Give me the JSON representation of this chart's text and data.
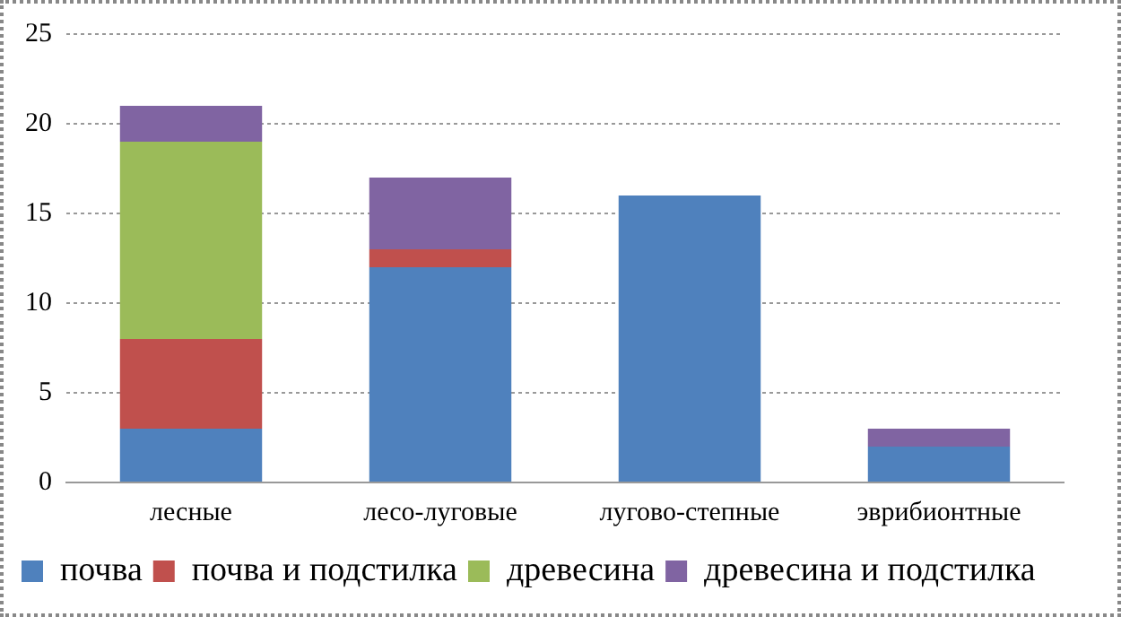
{
  "chart_data": {
    "type": "bar",
    "stacked": true,
    "categories": [
      "лесные",
      "лесо-луговые",
      "лугово-степные",
      "эврибионтные"
    ],
    "series": [
      {
        "name": "почва",
        "color": "#4f81bd",
        "values": [
          3,
          12,
          16,
          2
        ]
      },
      {
        "name": "почва и подстилка",
        "color": "#c0504d",
        "values": [
          5,
          1,
          0,
          0
        ]
      },
      {
        "name": "древесина",
        "color": "#9bbb59",
        "values": [
          11,
          0,
          0,
          0
        ]
      },
      {
        "name": "древесина и подстилка",
        "color": "#8064a2",
        "values": [
          2,
          4,
          0,
          1
        ]
      }
    ],
    "ylim": [
      0,
      25
    ],
    "yticks": [
      0,
      5,
      10,
      15,
      20,
      25
    ],
    "grid": "y",
    "legend": "bottom"
  }
}
